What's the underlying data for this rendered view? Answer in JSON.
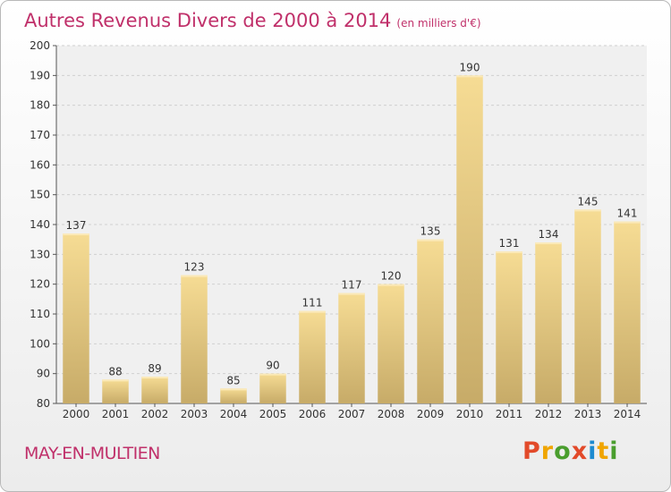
{
  "title": "Autres Revenus Divers de 2000 à 2014",
  "subtitle": "(en milliers d'€)",
  "town": "MAY-EN-MULTIEN",
  "logo": "Proxiti",
  "colors": {
    "title": "#c0306a",
    "bar_top": "#f6dc94",
    "bar_bottom": "#c7ab68",
    "logo_letters": [
      "#e24a2a",
      "#f0a500",
      "#4a9e2e",
      "#e24a2a",
      "#1c8ad0",
      "#f0a500",
      "#4a9e2e"
    ]
  },
  "chart_data": {
    "type": "bar",
    "title": "Autres Revenus Divers de 2000 à 2014",
    "subtitle": "(en milliers d'€)",
    "categories": [
      "2000",
      "2001",
      "2002",
      "2003",
      "2004",
      "2005",
      "2006",
      "2007",
      "2008",
      "2009",
      "2010",
      "2011",
      "2012",
      "2013",
      "2014"
    ],
    "values": [
      137,
      88,
      89,
      123,
      85,
      90,
      111,
      117,
      120,
      135,
      190,
      131,
      134,
      145,
      141
    ],
    "ylim": [
      80,
      200
    ],
    "yticks": [
      80,
      90,
      100,
      110,
      120,
      130,
      140,
      150,
      160,
      170,
      180,
      190,
      200
    ],
    "grid": true,
    "legend": "none"
  }
}
